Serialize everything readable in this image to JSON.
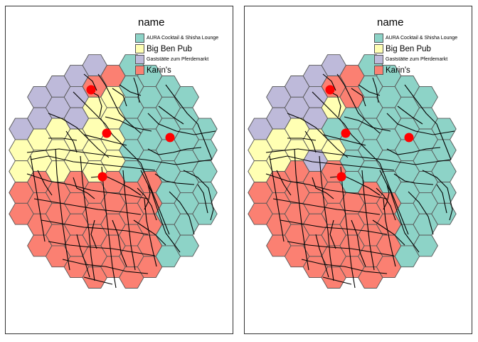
{
  "legend": {
    "title": "name",
    "items": [
      {
        "label": "AURA Cocktail & Shisha Lounge",
        "color": "#8DD3C7",
        "size": "small"
      },
      {
        "label": "Big Ben Pub",
        "color": "#FFFFB3",
        "size": "big"
      },
      {
        "label": "Gaststätte zum Pferdemarkt",
        "color": "#BEBADA",
        "size": "small"
      },
      {
        "label": "Karin's",
        "color": "#FB8072",
        "size": "big"
      }
    ]
  },
  "map": {
    "hex_outline_color": "#555555",
    "road_color": "#000000",
    "point_color": "#FF0000",
    "panels": [
      {
        "name": "panel-left"
      },
      {
        "name": "panel-right"
      }
    ]
  }
}
